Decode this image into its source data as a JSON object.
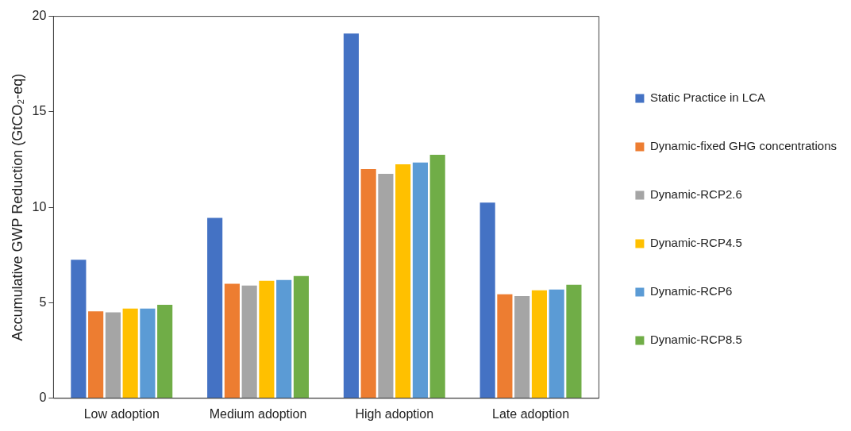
{
  "chart_data": {
    "type": "bar",
    "ylabel": "Accumulative GWP Reduction (GtCO₂-eq)",
    "categories": [
      "Low adoption",
      "Medium adoption",
      "High adoption",
      "Late adoption"
    ],
    "series": [
      {
        "name": "Static Practice in LCA",
        "color": "#4472c4",
        "values": [
          7.25,
          9.45,
          19.1,
          10.25
        ]
      },
      {
        "name": "Dynamic-fixed GHG concentrations",
        "color": "#ed7d31",
        "values": [
          4.55,
          6.0,
          12.0,
          5.45
        ]
      },
      {
        "name": "Dynamic-RCP2.6",
        "color": "#a5a5a5",
        "values": [
          4.5,
          5.9,
          11.75,
          5.35
        ]
      },
      {
        "name": "Dynamic-RCP4.5",
        "color": "#ffc000",
        "values": [
          4.7,
          6.15,
          12.25,
          5.65
        ]
      },
      {
        "name": "Dynamic-RCP6",
        "color": "#5b9bd5",
        "values": [
          4.7,
          6.2,
          12.35,
          5.7
        ]
      },
      {
        "name": "Dynamic-RCP8.5",
        "color": "#70ad47",
        "values": [
          4.9,
          6.4,
          12.75,
          5.95
        ]
      }
    ],
    "ylim": [
      0,
      20
    ],
    "yticks": [
      0,
      5,
      10,
      15,
      20
    ],
    "grid": false,
    "legend": "right"
  }
}
